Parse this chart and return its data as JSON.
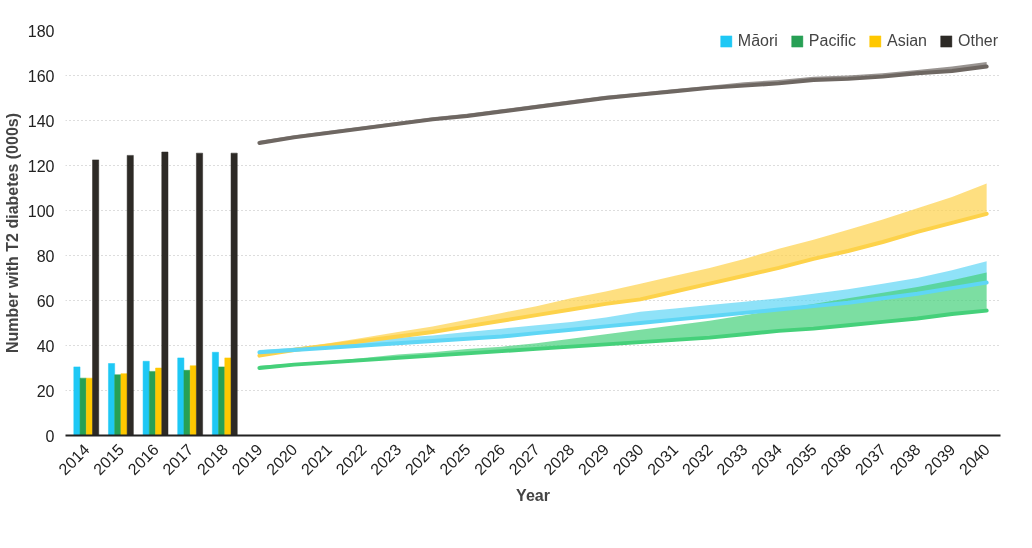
{
  "chart_data": {
    "type": "bar",
    "xlabel": "Year",
    "ylabel": "Number with T2 diabetes (000s)",
    "categories": [
      "2014",
      "2015",
      "2016",
      "2017",
      "2018",
      "2019",
      "2020",
      "2021",
      "2022",
      "2023",
      "2024",
      "2025",
      "2026",
      "2027",
      "2028",
      "2029",
      "2030",
      "2031",
      "2032",
      "2033",
      "2034",
      "2035",
      "2036",
      "2037",
      "2038",
      "2039",
      "2040"
    ],
    "ylim": [
      0,
      180
    ],
    "yticks": [
      0,
      20,
      40,
      60,
      80,
      100,
      120,
      140,
      160,
      180
    ],
    "grid": "y",
    "legend": "top right",
    "series": [
      {
        "name": "Māori",
        "color": "#1ec8f5",
        "values": [
          30.5,
          32,
          33,
          34.5,
          37,
          null,
          null,
          null,
          null,
          null,
          null,
          null,
          null,
          null,
          null,
          null,
          null,
          null,
          null,
          null,
          null,
          null,
          null,
          null,
          null,
          null,
          null
        ]
      },
      {
        "name": "Pacific",
        "color": "#27a055",
        "values": [
          25.5,
          27,
          28.5,
          29,
          30.5,
          null,
          null,
          null,
          null,
          null,
          null,
          null,
          null,
          null,
          null,
          null,
          null,
          null,
          null,
          null,
          null,
          null,
          null,
          null,
          null,
          null,
          null
        ]
      },
      {
        "name": "Asian",
        "color": "#ffc800",
        "values": [
          25.5,
          27.5,
          30,
          31,
          34.5,
          null,
          null,
          null,
          null,
          null,
          null,
          null,
          null,
          null,
          null,
          null,
          null,
          null,
          null,
          null,
          null,
          null,
          null,
          null,
          null,
          null,
          null
        ]
      },
      {
        "name": "Other",
        "color": "#2d2a26",
        "values": [
          122.5,
          124.5,
          126,
          125.5,
          125.5,
          null,
          null,
          null,
          null,
          null,
          null,
          null,
          null,
          null,
          null,
          null,
          null,
          null,
          null,
          null,
          null,
          null,
          null,
          null,
          null,
          null,
          null
        ]
      },
      {
        "type": "line",
        "color": "#6e6762",
        "values": [
          null,
          null,
          null,
          null,
          null,
          130,
          132.5,
          134.5,
          136.5,
          138.5,
          140.5,
          142,
          144,
          146,
          148,
          150,
          151.5,
          153,
          154.5,
          155.5,
          156.5,
          158,
          158.5,
          159.5,
          161,
          162,
          164
        ],
        "lower": [
          null,
          null,
          null,
          null,
          null,
          130,
          132.5,
          134.5,
          136.5,
          138.5,
          140.5,
          142,
          144,
          146,
          148,
          150,
          151.5,
          153,
          154.5,
          155.5,
          156.5,
          158,
          158.5,
          159.5,
          161,
          162,
          164
        ],
        "upper": [
          null,
          null,
          null,
          null,
          null,
          131,
          133.5,
          135.5,
          137.5,
          139.5,
          141.5,
          143,
          145,
          147,
          149,
          151,
          152.5,
          154,
          155.5,
          157,
          158,
          159.5,
          160,
          161,
          162.5,
          164,
          166
        ]
      },
      {
        "type": "line",
        "color": "#fdd24a",
        "values": [
          null,
          null,
          null,
          null,
          null,
          35.5,
          38,
          40,
          42,
          44,
          46,
          48.5,
          51,
          53.5,
          56,
          58.5,
          60.5,
          64,
          67.5,
          71,
          74.5,
          78.5,
          82,
          86,
          90.5,
          94.5,
          98.5
        ],
        "lower": [
          null,
          null,
          null,
          null,
          null,
          35.5,
          38,
          40,
          42,
          44,
          46,
          48.5,
          51,
          53.5,
          56,
          58.5,
          60.5,
          64,
          67.5,
          71,
          74.5,
          78.5,
          82,
          86,
          90.5,
          94.5,
          98.5
        ],
        "upper": [
          null,
          null,
          null,
          null,
          null,
          36.5,
          39,
          41,
          43.5,
          46,
          48.5,
          51.5,
          54.5,
          57.5,
          61,
          64,
          67.5,
          71,
          74.5,
          78.5,
          83,
          87,
          91.5,
          96,
          101,
          106,
          112
        ]
      },
      {
        "type": "line",
        "color": "#5fd6f5",
        "values": [
          null,
          null,
          null,
          null,
          null,
          37,
          38,
          39,
          40,
          41,
          42,
          43,
          44,
          45.5,
          47,
          48.5,
          50,
          51.5,
          53,
          54.5,
          56,
          57.5,
          59,
          61,
          63,
          65.5,
          68
        ],
        "lower": [
          null,
          null,
          null,
          null,
          null,
          37,
          38,
          39,
          40,
          41,
          42,
          43,
          44,
          45.5,
          47,
          48.5,
          50,
          51.5,
          53,
          54.5,
          56,
          57.5,
          59,
          61,
          63,
          65.5,
          68
        ],
        "upper": [
          null,
          null,
          null,
          null,
          null,
          38,
          39,
          40.5,
          42,
          43.5,
          44.5,
          46,
          47.5,
          49,
          50.5,
          52.5,
          55,
          56.5,
          58,
          59.5,
          61,
          63,
          65,
          67.5,
          70,
          73.5,
          77.5
        ]
      },
      {
        "type": "line",
        "color": "#45d07a",
        "values": [
          null,
          null,
          null,
          null,
          null,
          30,
          31.5,
          32.5,
          33.5,
          34.5,
          35.5,
          36.5,
          37.5,
          38.5,
          39.5,
          40.5,
          41.5,
          42.5,
          43.5,
          45,
          46.5,
          47.5,
          49,
          50.5,
          52,
          54,
          55.5
        ],
        "lower": [
          null,
          null,
          null,
          null,
          null,
          30,
          31.5,
          32.5,
          33.5,
          34.5,
          35.5,
          36.5,
          37.5,
          38.5,
          39.5,
          40.5,
          41.5,
          42.5,
          43.5,
          45,
          46.5,
          47.5,
          49,
          50.5,
          52,
          54,
          55.5
        ],
        "upper": [
          null,
          null,
          null,
          null,
          null,
          31,
          32,
          33,
          34.5,
          36,
          37,
          38.5,
          39.5,
          41,
          43,
          45,
          47,
          49,
          51,
          53.5,
          56,
          58.5,
          61,
          63.5,
          66,
          69,
          72.5
        ]
      }
    ]
  }
}
